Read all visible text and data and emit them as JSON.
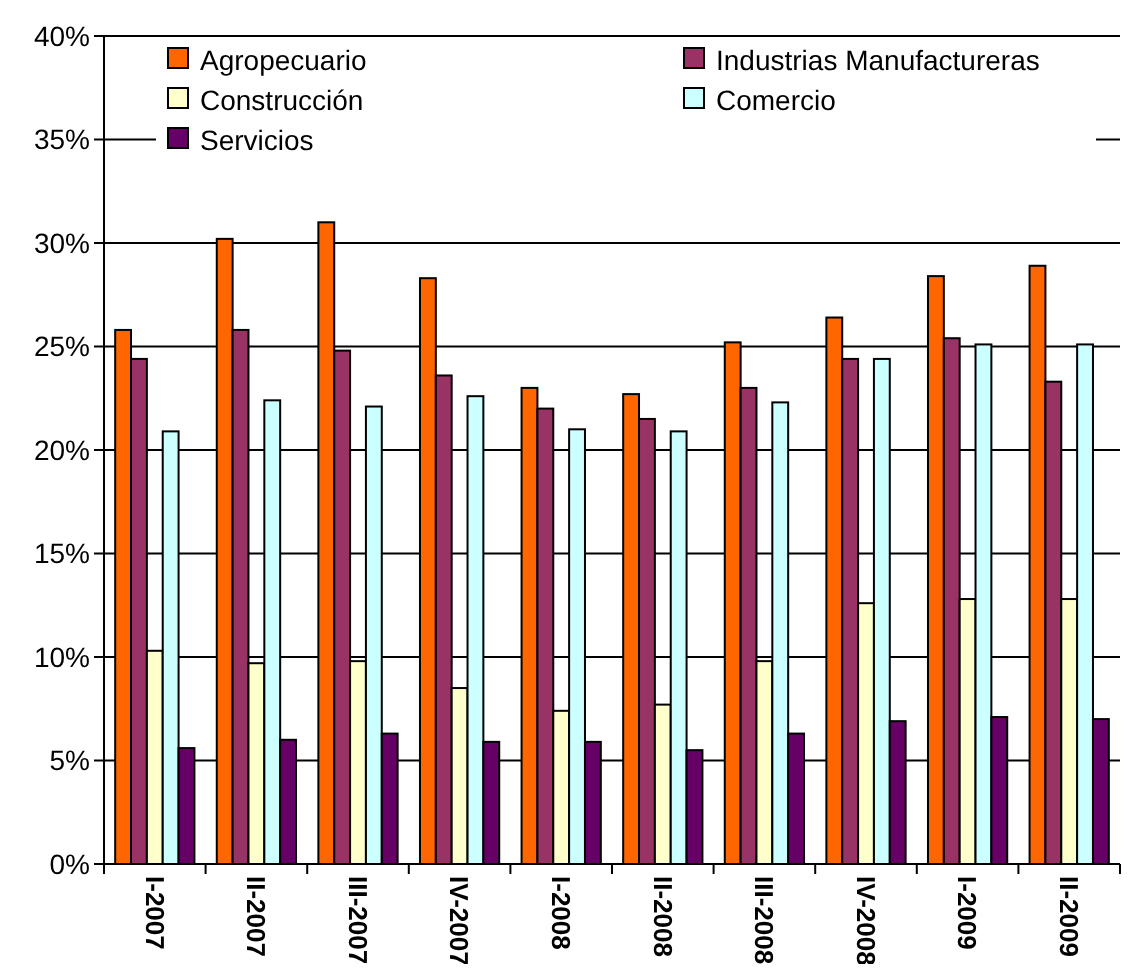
{
  "chart_data": {
    "type": "bar",
    "categories": [
      "I-2007",
      "II-2007",
      "III-2007",
      "IV-2007",
      "I-2008",
      "II-2008",
      "III-2008",
      "IV-2008",
      "I-2009",
      "II-2009"
    ],
    "series": [
      {
        "name": "Agropecuario",
        "color": "#ff6600",
        "values": [
          25.8,
          30.2,
          31.0,
          28.3,
          23.0,
          22.7,
          25.2,
          26.4,
          28.4,
          28.9
        ]
      },
      {
        "name": "Industrias Manufactureras",
        "color": "#993366",
        "values": [
          24.4,
          25.8,
          24.8,
          23.6,
          22.0,
          21.5,
          23.0,
          24.4,
          25.4,
          23.3
        ]
      },
      {
        "name": "Construcción",
        "color": "#ffffcc",
        "values": [
          10.3,
          9.7,
          9.8,
          8.5,
          7.4,
          7.7,
          9.8,
          12.6,
          12.8,
          12.8
        ]
      },
      {
        "name": "Comercio",
        "color": "#ccffff",
        "values": [
          20.9,
          22.4,
          22.1,
          22.6,
          21.0,
          20.9,
          22.3,
          24.4,
          25.1,
          25.1
        ]
      },
      {
        "name": "Servicios",
        "color": "#660066",
        "values": [
          5.6,
          6.0,
          6.3,
          5.9,
          5.9,
          5.5,
          6.3,
          6.9,
          7.1,
          7.0
        ]
      }
    ],
    "ylim": [
      0,
      40
    ],
    "yticks": [
      {
        "value": 0,
        "label": "0%"
      },
      {
        "value": 5,
        "label": "5%"
      },
      {
        "value": 10,
        "label": "10%"
      },
      {
        "value": 15,
        "label": "15%"
      },
      {
        "value": 20,
        "label": "20%"
      },
      {
        "value": 25,
        "label": "25%"
      },
      {
        "value": 30,
        "label": "30%"
      },
      {
        "value": 35,
        "label": "35%"
      },
      {
        "value": 40,
        "label": "40%"
      }
    ],
    "grid": "y",
    "legend": "top"
  }
}
